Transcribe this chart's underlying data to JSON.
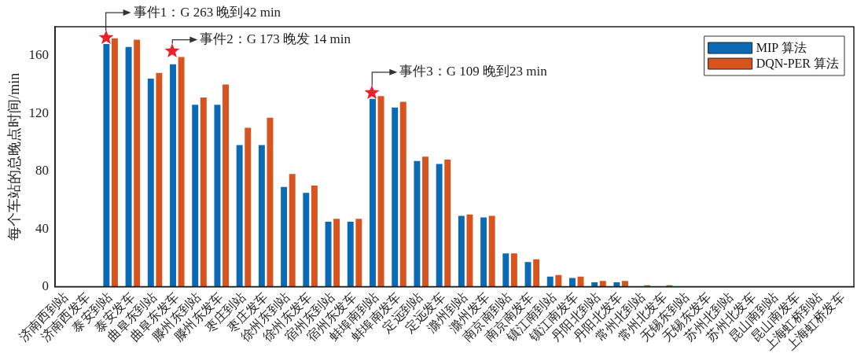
{
  "chart_data": {
    "type": "bar",
    "ylabel": "每个车站的总晚点时间/min",
    "categories": [
      "济南西到站",
      "济南西发车",
      "泰安到站",
      "泰安发车",
      "曲阜东到站",
      "曲阜东发车",
      "滕州东到站",
      "滕州东发车",
      "枣庄到站",
      "枣庄发车",
      "徐州东到站",
      "徐州东发车",
      "宿州东到站",
      "宿州东发车",
      "蚌埠南到站",
      "蚌埠南发车",
      "定远到站",
      "定远发车",
      "滁州到站",
      "滁州发车",
      "南京南到站",
      "南京南发车",
      "镇江南到站",
      "镇江南发车",
      "丹阳北到站",
      "丹阳北发车",
      "常州北到站",
      "常州北发车",
      "无锡东到站",
      "无锡东发车",
      "苏州北到站",
      "苏州北发车",
      "昆山南到站",
      "昆山南发车",
      "上海虹桥到站",
      "上海虹桥发车"
    ],
    "series": [
      {
        "name": "MIP 算法",
        "color": "#0a6ab5",
        "values": [
          0,
          0,
          168,
          166,
          144,
          154,
          126,
          126,
          98,
          98,
          69,
          65,
          45,
          45,
          130,
          124,
          87,
          85,
          49,
          48,
          23,
          17,
          7,
          6,
          3,
          3,
          0,
          0,
          0,
          0,
          0,
          0,
          0,
          0,
          0,
          0
        ]
      },
      {
        "name": "DQN-PER 算法",
        "color": "#d8541f",
        "values": [
          0,
          0,
          172,
          171,
          148,
          159,
          131,
          140,
          110,
          117,
          78,
          70,
          47,
          47,
          132,
          128,
          90,
          88,
          50,
          49,
          23,
          19,
          8,
          7,
          4,
          4,
          1,
          1,
          0,
          0,
          0,
          0,
          0,
          0,
          0,
          0
        ]
      }
    ],
    "ylim": [
      0,
      180
    ],
    "yticks": [
      0,
      40,
      80,
      120,
      160
    ],
    "grid": false,
    "legend": "top right",
    "annotations": [
      {
        "text": "事件1：G 263 晚到42 min",
        "x": "泰安到站",
        "y": 168
      },
      {
        "text": "事件2：G 173 晚发 14 min",
        "x": "曲阜东发车",
        "y": 159
      },
      {
        "text": "事件3：G 109 晚到23 min",
        "x": "蚌埠南到站",
        "y": 130
      }
    ]
  }
}
